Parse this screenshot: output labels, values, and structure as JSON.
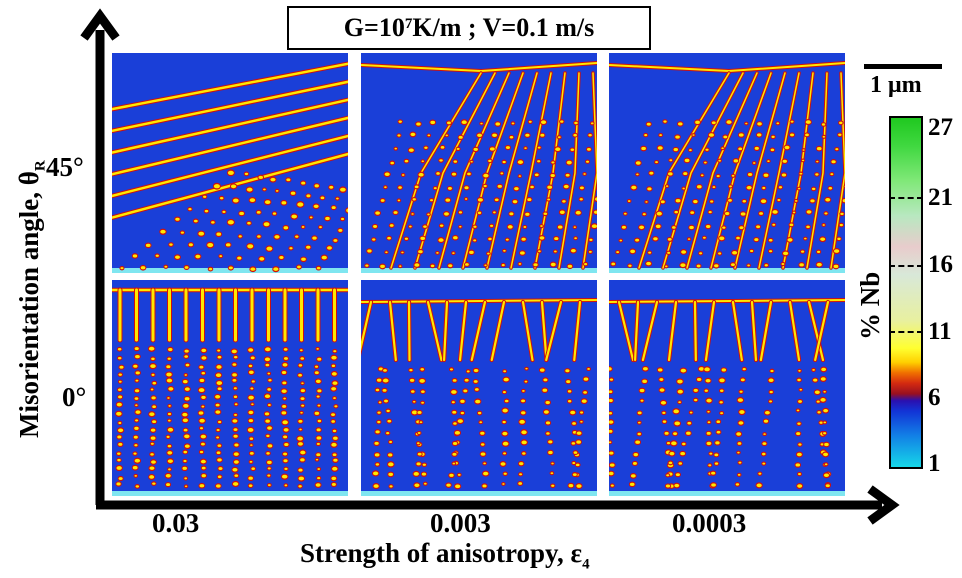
{
  "title": {
    "prefix": "G=10",
    "exponent": "7",
    "suffix": " K/m ; V=0.1 m/s"
  },
  "y_axis": {
    "label": "Misorientation angle, θ",
    "subscript": "R",
    "ticks": [
      "45°",
      "0°"
    ]
  },
  "x_axis": {
    "label": "Strength of anisotropy, ε",
    "subscript": "4",
    "ticks": [
      "0.03",
      "0.003",
      "0.0003"
    ]
  },
  "scale_bar": {
    "label": "1 μm"
  },
  "colorbar": {
    "title": "% Nb",
    "ticks": [
      "27",
      "21",
      "16",
      "11",
      "6",
      "1"
    ]
  },
  "colors": {
    "background_phase": "#1a3fd8",
    "interface": "#ffe800",
    "rim": "#cc1010",
    "base_strip": "#7fe6f0"
  },
  "panels": [
    {
      "row": "45°",
      "col": "0.03",
      "pattern": "inclined-dendrites"
    },
    {
      "row": "45°",
      "col": "0.003",
      "pattern": "inclined-seaweed"
    },
    {
      "row": "45°",
      "col": "0.0003",
      "pattern": "inclined-seaweed"
    },
    {
      "row": "0°",
      "col": "0.03",
      "pattern": "vertical-dendrites"
    },
    {
      "row": "0°",
      "col": "0.003",
      "pattern": "seaweed"
    },
    {
      "row": "0°",
      "col": "0.0003",
      "pattern": "seaweed"
    }
  ]
}
